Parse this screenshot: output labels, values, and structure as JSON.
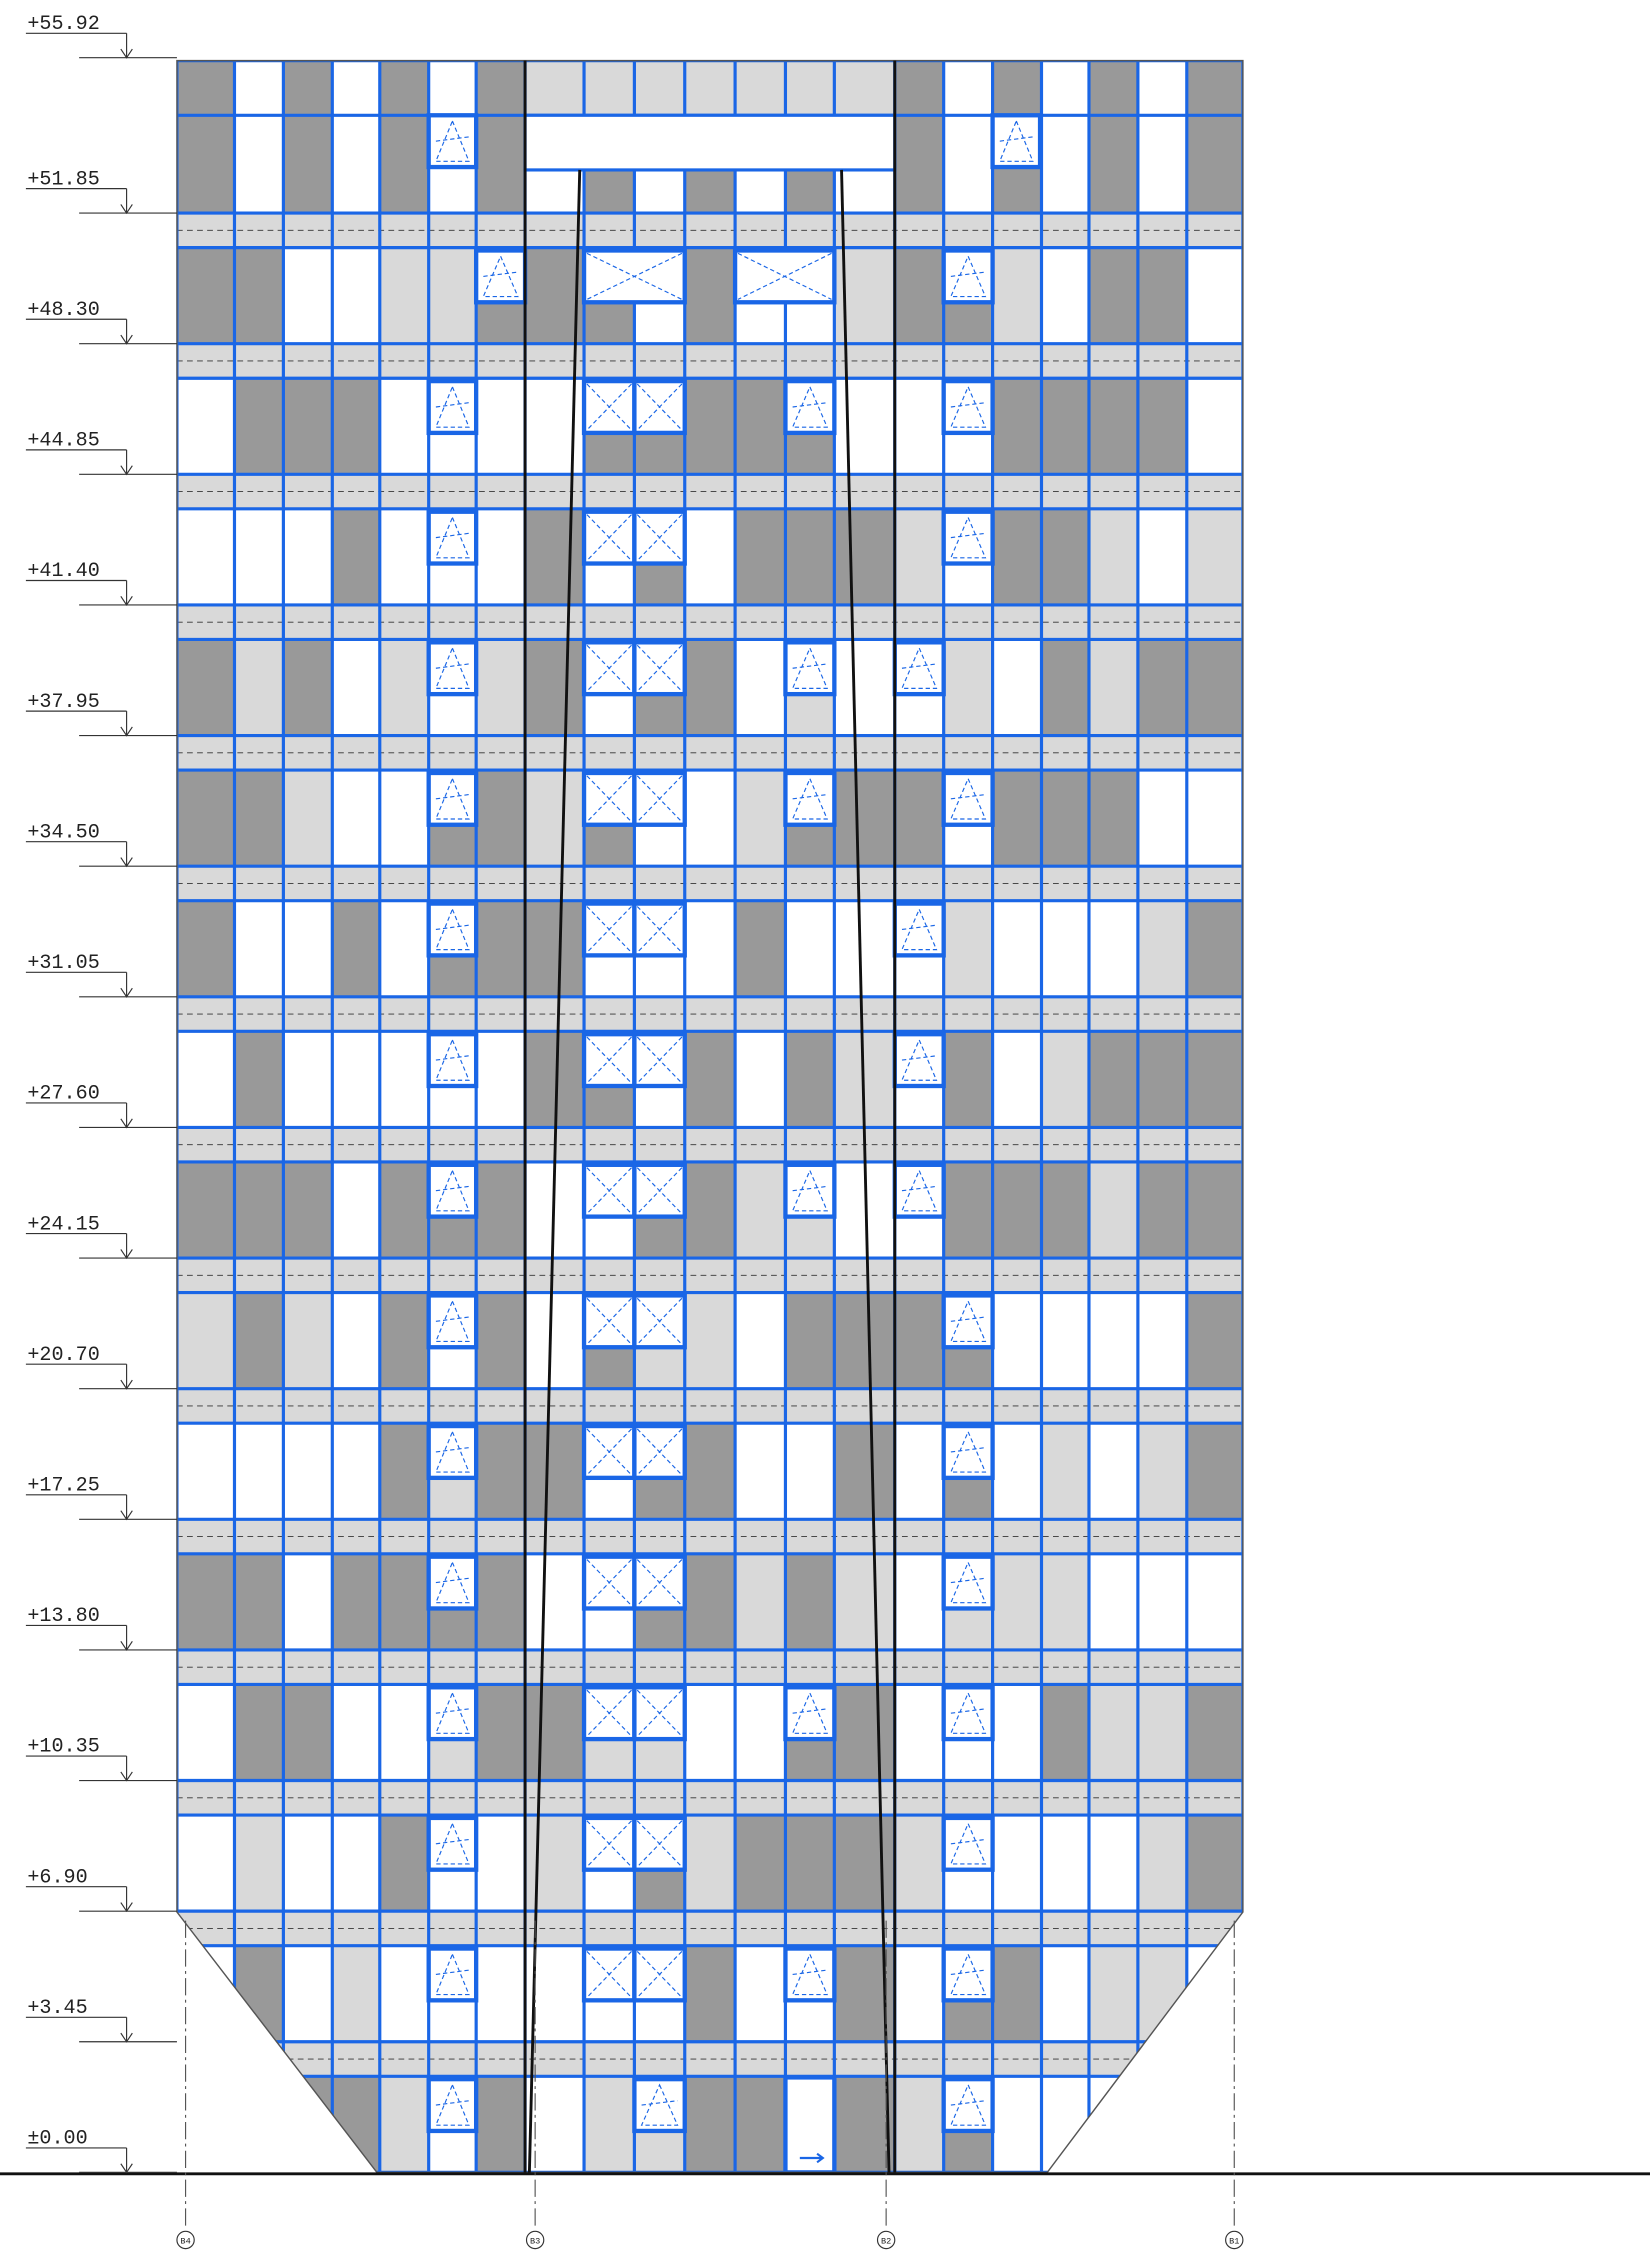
{
  "levels": [
    "+55.92",
    "+51.85",
    "+48.30",
    "+44.85",
    "+41.40",
    "+37.95",
    "+34.50",
    "+31.05",
    "+27.60",
    "+24.15",
    "+20.70",
    "+17.25",
    "+13.80",
    "+10.35",
    "+6.90",
    "+3.45",
    "±0.00"
  ],
  "axes": [
    "B4",
    "B3",
    "B2",
    "B1"
  ]
}
